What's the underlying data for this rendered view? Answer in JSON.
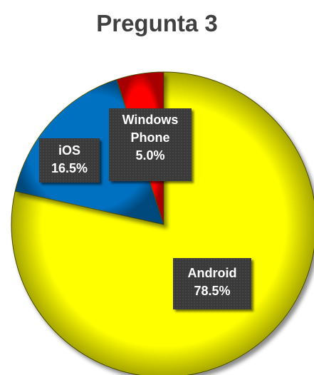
{
  "chart_data": {
    "type": "pie",
    "title": "Pregunta 3",
    "series": [
      {
        "name": "Android",
        "value": 78.5,
        "label": "78.5%",
        "color": "#ffff00"
      },
      {
        "name": "iOS",
        "value": 16.5,
        "label": "16.5%",
        "color": "#0070c0"
      },
      {
        "name": "Windows Phone",
        "value": 5.0,
        "label": "5.0%",
        "color": "#ff0000"
      }
    ],
    "start_angle_deg": 0,
    "direction": "clockwise",
    "data_labels": "category and percentage",
    "legend": "none"
  }
}
